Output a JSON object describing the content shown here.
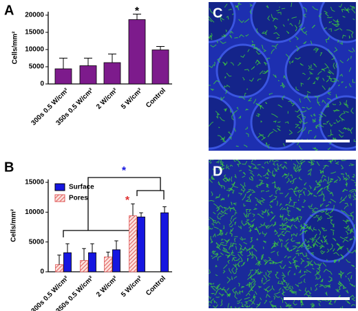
{
  "panels": {
    "a": "A",
    "b": "B",
    "c": "C",
    "d": "D"
  },
  "chart_data": [
    {
      "type": "bar",
      "ylabel": "Cells/mm²",
      "categories": [
        "300s 0.5 W/cm²",
        "350s 0.5 W/cm²",
        "2 W/cm²",
        "5 W/cm²",
        "Control"
      ],
      "series": [
        {
          "name": null,
          "color": "#7d1b8c",
          "values": [
            4400,
            5300,
            6200,
            18700,
            9900
          ],
          "errors": [
            3100,
            2200,
            2500,
            1600,
            1000
          ]
        }
      ],
      "ylim": [
        0,
        21000
      ],
      "yticks": [
        0,
        5000,
        10000,
        15000,
        20000
      ],
      "annotations": [
        {
          "text": "*",
          "color": "#000000"
        }
      ]
    },
    {
      "type": "bar",
      "ylabel": "Cells/mm²",
      "categories": [
        "300s 0.5 W/cm²",
        "350s 0.5 W/cm²",
        "2 W/cm²",
        "5 W/cm²",
        "Control"
      ],
      "series": [
        {
          "name": "Pores",
          "color": "#e05a5a",
          "hatch": true,
          "values": [
            1200,
            1900,
            2500,
            9400,
            null
          ],
          "errors": [
            1600,
            2000,
            800,
            2000,
            null
          ]
        },
        {
          "name": "Surface",
          "color": "#1616e0",
          "values": [
            3200,
            3200,
            3700,
            9200,
            9900
          ],
          "errors": [
            1500,
            1500,
            1500,
            700,
            1000
          ]
        }
      ],
      "ylim": [
        0,
        15500
      ],
      "yticks": [
        0,
        5000,
        10000,
        15000
      ],
      "legend": "upper left",
      "annotations": [
        {
          "text": "*",
          "color": "#1616e0"
        },
        {
          "text": "*",
          "color": "#e03030"
        }
      ]
    }
  ]
}
